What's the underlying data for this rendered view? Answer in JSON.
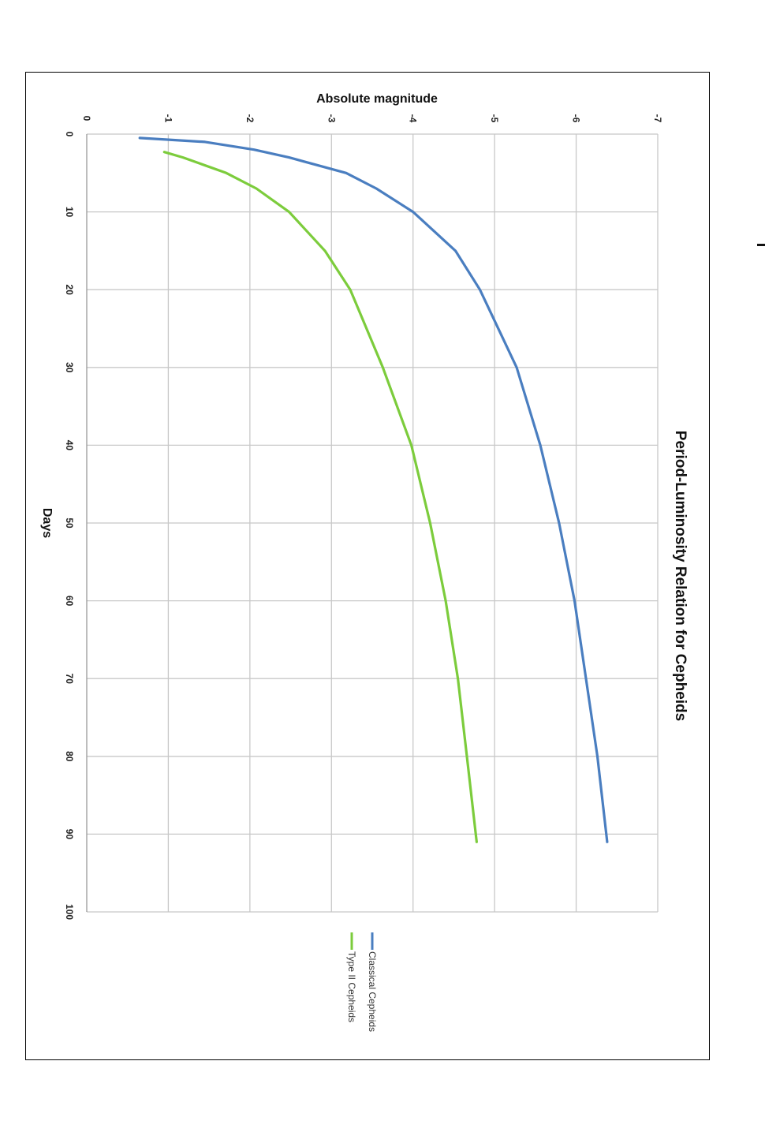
{
  "chart_data": {
    "type": "line",
    "orientation": "rotated-90-clockwise",
    "title": "Period-Luminosity Relation for Cepheids",
    "xlabel": "Days",
    "ylabel": "Absolute magnitude",
    "xlim": [
      0,
      100
    ],
    "ylim": [
      0,
      -7
    ],
    "xticks": [
      "0",
      "10",
      "20",
      "30",
      "40",
      "50",
      "60",
      "70",
      "80",
      "90",
      "100"
    ],
    "yticks": [
      "0",
      "-1",
      "-2",
      "-3",
      "-4",
      "-5",
      "-6",
      "-7"
    ],
    "grid": true,
    "legend_position": "bottom",
    "series": [
      {
        "name": "Classical Cepheids",
        "color": "#4a7ec0",
        "x": [
          0.5,
          1,
          2,
          3,
          5,
          7,
          10,
          15,
          20,
          30,
          40,
          50,
          60,
          70,
          80,
          91
        ],
        "y": [
          -0.65,
          -1.45,
          -2.05,
          -2.48,
          -3.18,
          -3.55,
          -4.0,
          -4.52,
          -4.82,
          -5.27,
          -5.56,
          -5.79,
          -5.98,
          -6.12,
          -6.26,
          -6.38
        ]
      },
      {
        "name": "Type II Cepheids",
        "color": "#7ccc3c",
        "x": [
          2.3,
          3,
          5,
          7,
          10,
          15,
          20,
          30,
          40,
          50,
          60,
          70,
          80,
          91
        ],
        "y": [
          -0.95,
          -1.18,
          -1.71,
          -2.08,
          -2.48,
          -2.92,
          -3.23,
          -3.63,
          -3.98,
          -4.21,
          -4.4,
          -4.55,
          -4.66,
          -4.78
        ]
      }
    ]
  }
}
